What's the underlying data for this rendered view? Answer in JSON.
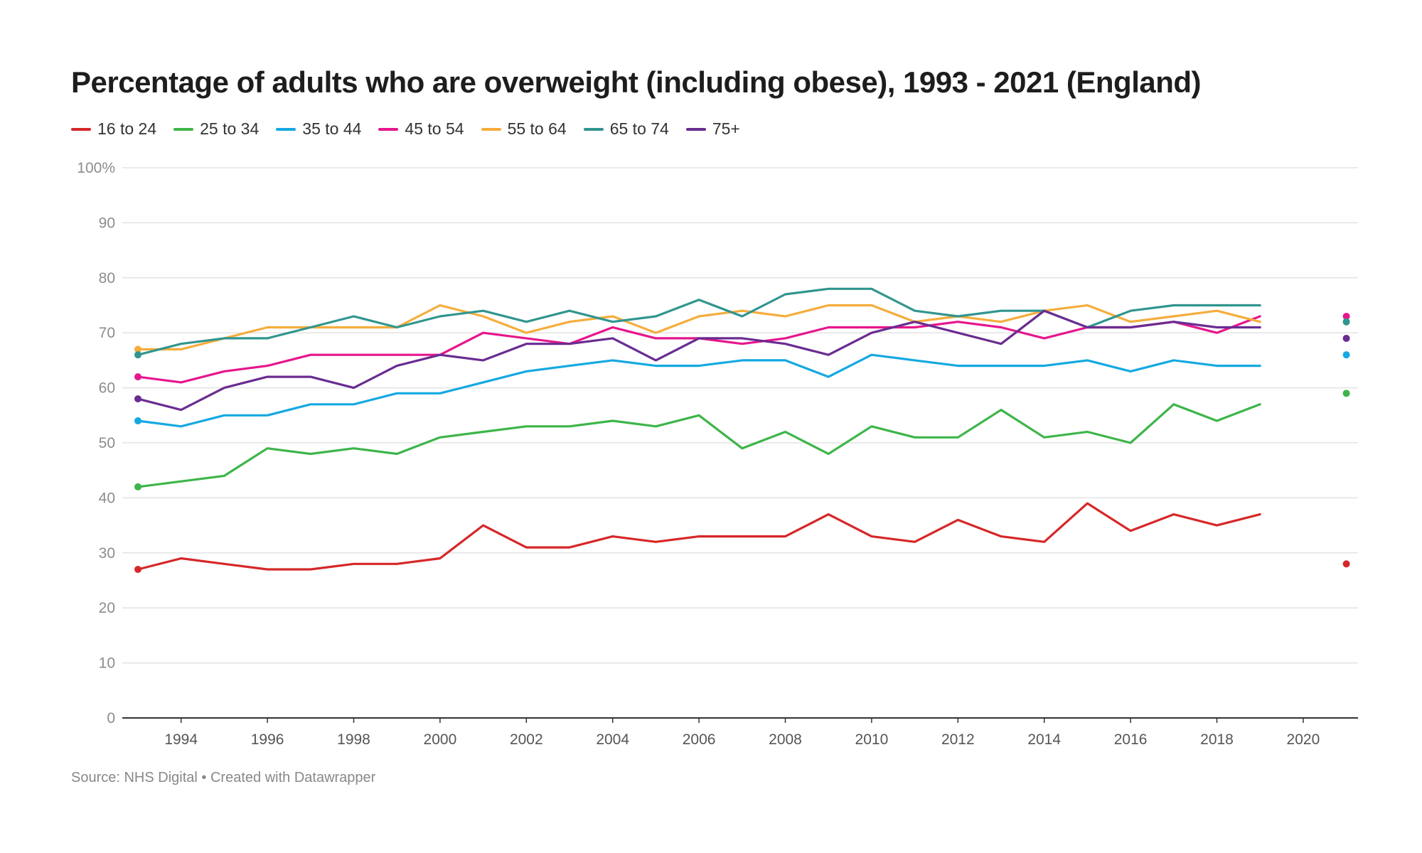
{
  "title": "Percentage of adults who are overweight (including obese), 1993 - 2021 (England)",
  "footer": {
    "source": "Source: NHS Digital",
    "separator": "•",
    "credit": "Created with Datawrapper"
  },
  "colors": {
    "16 to 24": "#d62728",
    "25 to 34": "#3db54a",
    "35 to 44": "#15a9e1",
    "45 to 54": "#e6168c",
    "55 to 64": "#f5ad3c",
    "65 to 74": "#31958f",
    "75+": "#6a2c91"
  },
  "chart_data": {
    "type": "line",
    "x": [
      1993,
      1994,
      1995,
      1996,
      1997,
      1998,
      1999,
      2000,
      2001,
      2002,
      2003,
      2004,
      2005,
      2006,
      2007,
      2008,
      2009,
      2010,
      2011,
      2012,
      2013,
      2014,
      2015,
      2016,
      2017,
      2018,
      2019
    ],
    "x_extra_point": 2021,
    "ylim": [
      0,
      100
    ],
    "xlim": [
      1993,
      2021
    ],
    "yticks": [
      0,
      10,
      20,
      30,
      40,
      50,
      60,
      70,
      80,
      90,
      100
    ],
    "ytick_labels": [
      "0",
      "10",
      "20",
      "30",
      "40",
      "50",
      "60",
      "70",
      "80",
      "90",
      "100%"
    ],
    "xticks": [
      1994,
      1996,
      1998,
      2000,
      2002,
      2004,
      2006,
      2008,
      2010,
      2012,
      2014,
      2016,
      2018,
      2020
    ],
    "grid": true,
    "legend": "top-left",
    "series": [
      {
        "name": "16 to 24",
        "values": [
          27,
          29,
          28,
          27,
          27,
          28,
          28,
          29,
          35,
          31,
          31,
          33,
          32,
          33,
          33,
          33,
          37,
          33,
          32,
          36,
          33,
          32,
          39,
          34,
          37,
          35,
          37
        ],
        "value_2021": 28
      },
      {
        "name": "25 to 34",
        "values": [
          42,
          43,
          44,
          49,
          48,
          49,
          48,
          51,
          52,
          53,
          53,
          54,
          53,
          55,
          49,
          52,
          48,
          53,
          51,
          51,
          56,
          51,
          52,
          50,
          57,
          54,
          57
        ],
        "value_2021": 59
      },
      {
        "name": "35 to 44",
        "values": [
          54,
          53,
          55,
          55,
          57,
          57,
          59,
          59,
          61,
          63,
          64,
          65,
          64,
          64,
          65,
          65,
          62,
          66,
          65,
          64,
          64,
          64,
          65,
          63,
          65,
          64,
          64
        ],
        "value_2021": 66
      },
      {
        "name": "45 to 54",
        "values": [
          62,
          61,
          63,
          64,
          66,
          66,
          66,
          66,
          70,
          69,
          68,
          71,
          69,
          69,
          68,
          69,
          71,
          71,
          71,
          72,
          71,
          69,
          71,
          71,
          72,
          70,
          73
        ],
        "value_2021": 73
      },
      {
        "name": "55 to 64",
        "values": [
          67,
          67,
          69,
          71,
          71,
          71,
          71,
          75,
          73,
          70,
          72,
          73,
          70,
          73,
          74,
          73,
          75,
          75,
          72,
          73,
          72,
          74,
          75,
          72,
          73,
          74,
          72
        ],
        "value_2021": 72
      },
      {
        "name": "65 to 74",
        "values": [
          66,
          68,
          69,
          69,
          71,
          73,
          71,
          73,
          74,
          72,
          74,
          72,
          73,
          76,
          73,
          77,
          78,
          78,
          74,
          73,
          74,
          74,
          71,
          74,
          75,
          75,
          75
        ],
        "value_2021": 72
      },
      {
        "name": "75+",
        "values": [
          58,
          56,
          60,
          62,
          62,
          60,
          64,
          66,
          65,
          68,
          68,
          69,
          65,
          69,
          69,
          68,
          66,
          70,
          72,
          70,
          68,
          74,
          71,
          71,
          72,
          71,
          71
        ],
        "value_2021": 69
      }
    ]
  }
}
